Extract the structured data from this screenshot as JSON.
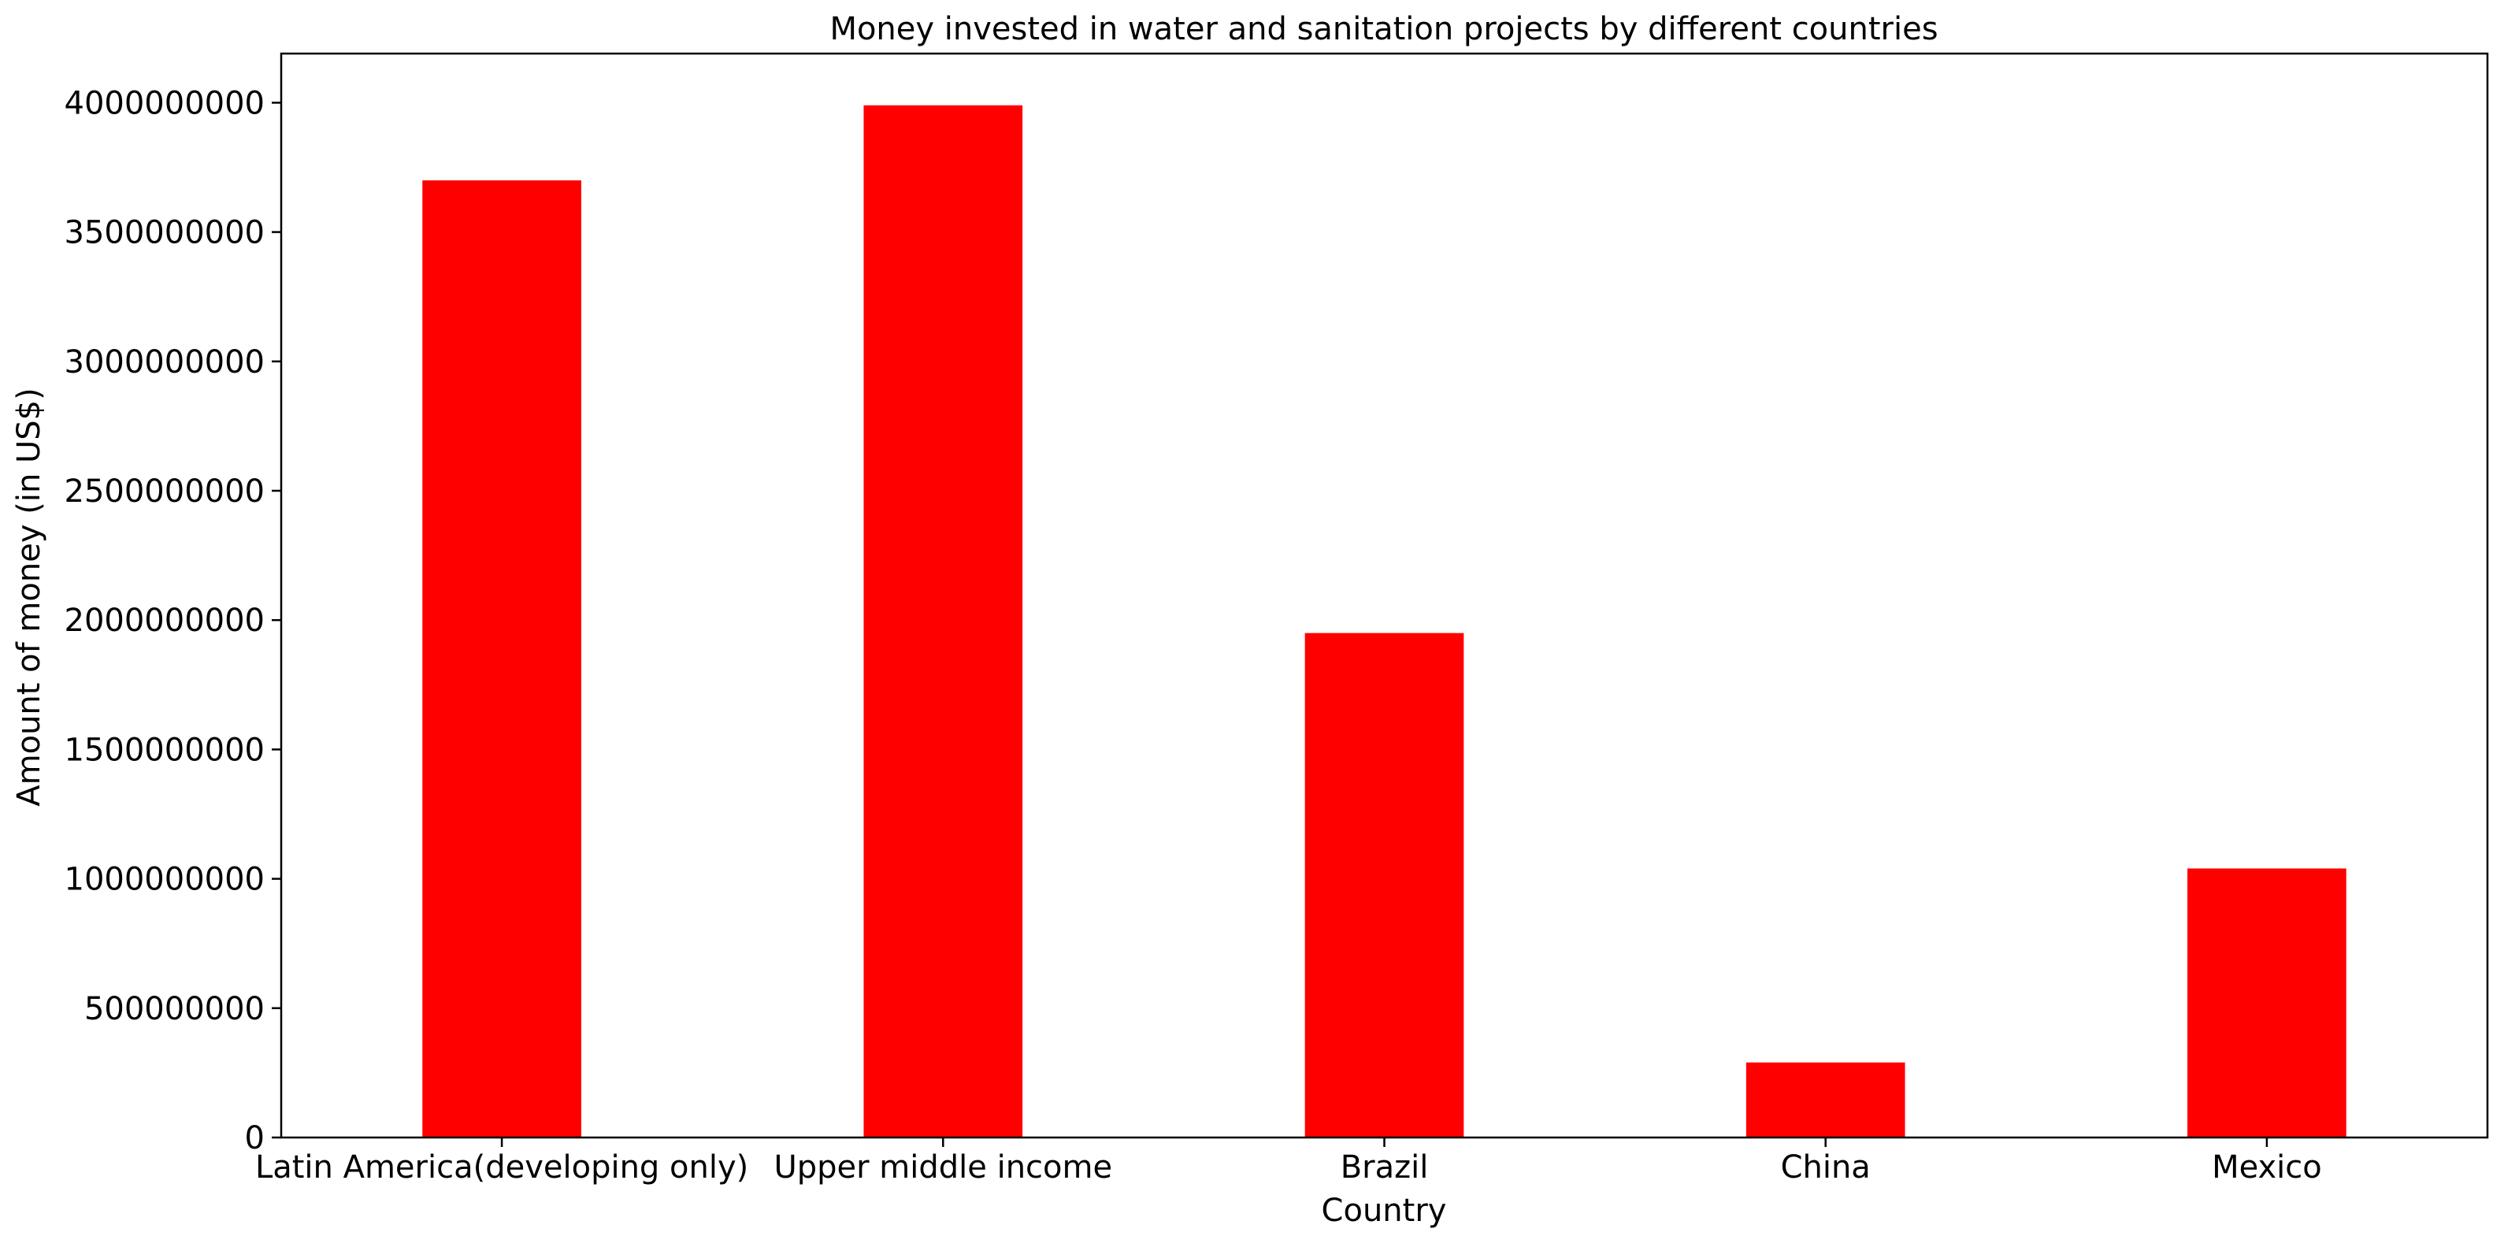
{
  "chart_data": {
    "type": "bar",
    "title": "Money invested in water and sanitation projects by different countries",
    "xlabel": "Country",
    "ylabel": "Amount of money (in US$)",
    "categories": [
      "Latin America(developing only)",
      "Upper middle income",
      "Brazil",
      "China",
      "Mexico"
    ],
    "values": [
      3700000000,
      3990000000,
      1950000000,
      290000000,
      1040000000
    ],
    "ylim": [
      0,
      4190000000
    ],
    "yticks": [
      0,
      500000000,
      1000000000,
      1500000000,
      2000000000,
      2500000000,
      3000000000,
      3500000000,
      4000000000
    ],
    "ytick_labels": [
      "0",
      "500000000",
      "1000000000",
      "1500000000",
      "2000000000",
      "2500000000",
      "3000000000",
      "3500000000",
      "4000000000"
    ],
    "bar_color": "#ff0000",
    "grid": false,
    "legend": "none"
  }
}
